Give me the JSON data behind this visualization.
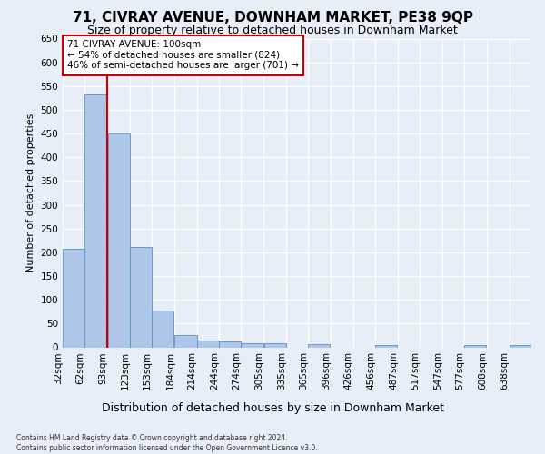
{
  "title": "71, CIVRAY AVENUE, DOWNHAM MARKET, PE38 9QP",
  "subtitle": "Size of property relative to detached houses in Downham Market",
  "xlabel": "Distribution of detached houses by size in Downham Market",
  "ylabel": "Number of detached properties",
  "footer_line1": "Contains HM Land Registry data © Crown copyright and database right 2024.",
  "footer_line2": "Contains public sector information licensed under the Open Government Licence v3.0.",
  "bar_edges": [
    32,
    62,
    93,
    123,
    153,
    184,
    214,
    244,
    274,
    305,
    335,
    365,
    396,
    426,
    456,
    487,
    517,
    547,
    577,
    608,
    638
  ],
  "bar_heights": [
    208,
    533,
    451,
    212,
    78,
    26,
    15,
    12,
    8,
    9,
    0,
    6,
    0,
    0,
    5,
    0,
    0,
    0,
    5,
    0,
    5
  ],
  "bar_color": "#aec6e8",
  "bar_edge_color": "#5a8fc2",
  "property_line_x": 93,
  "annotation_text_line1": "71 CIVRAY AVENUE: 100sqm",
  "annotation_text_line2": "← 54% of detached houses are smaller (824)",
  "annotation_text_line3": "46% of semi-detached houses are larger (701) →",
  "annotation_box_color": "#ffffff",
  "annotation_border_color": "#cc0000",
  "vline_color": "#cc0000",
  "ylim": [
    0,
    650
  ],
  "xlim_left": 32,
  "xlim_right": 668,
  "background_color": "#e8eef8",
  "grid_color": "#ffffff",
  "title_fontsize": 11,
  "subtitle_fontsize": 9,
  "tick_label_rotation": 90,
  "tick_fontsize": 7.5,
  "ylabel_fontsize": 8,
  "xlabel_fontsize": 9
}
